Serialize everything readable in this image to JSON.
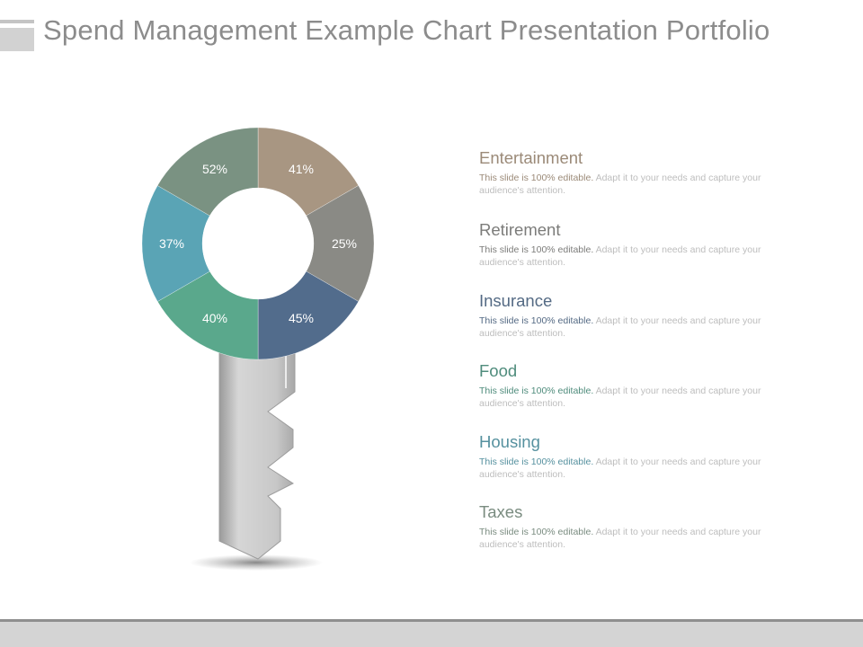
{
  "title": "Spend Management Example Chart Presentation Portfolio",
  "description_highlight": "This slide is 100% editable.",
  "description_rest": " Adapt it to your needs and capture your audience's attention.",
  "chart_data": {
    "type": "pie",
    "variant": "donut",
    "categories": [
      "Entertainment",
      "Retirement",
      "Insurance",
      "Food",
      "Housing",
      "Taxes"
    ],
    "values": [
      41,
      25,
      45,
      40,
      37,
      52
    ],
    "labels": [
      "41%",
      "25%",
      "45%",
      "40%",
      "37%",
      "52%"
    ],
    "colors": [
      "#a89682",
      "#8a8a85",
      "#526c8c",
      "#5aa88c",
      "#5aa4b5",
      "#7a9282"
    ]
  },
  "categories": [
    {
      "name": "Entertainment",
      "color": "#9b8a78"
    },
    {
      "name": "Retirement",
      "color": "#7c7c7a"
    },
    {
      "name": "Insurance",
      "color": "#546a84"
    },
    {
      "name": "Food",
      "color": "#4f8c7c"
    },
    {
      "name": "Housing",
      "color": "#56919f"
    },
    {
      "name": "Taxes",
      "color": "#7a8c80"
    }
  ]
}
